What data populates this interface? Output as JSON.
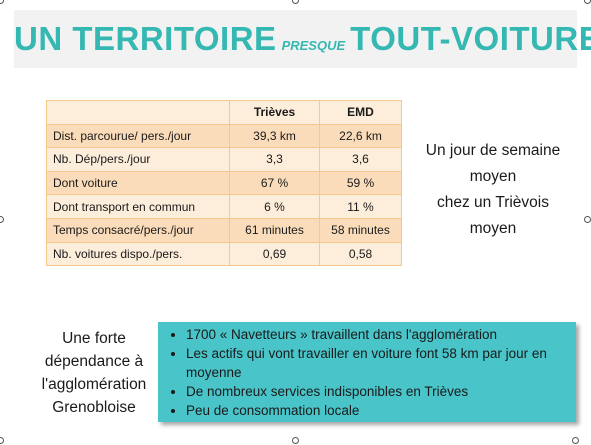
{
  "title": {
    "part1": "UN TERRITOIRE",
    "part2": "PRESQUE",
    "part3": "TOUT-VOITURE"
  },
  "table": {
    "headers": [
      "",
      "Trièves",
      "EMD"
    ],
    "rows": [
      [
        "Dist. parcourue/ pers./jour",
        "39,3 km",
        "22,6 km"
      ],
      [
        "Nb. Dép/pers./jour",
        "3,3",
        "3,6"
      ],
      [
        "Dont voiture",
        "67 %",
        "59 %"
      ],
      [
        "Dont transport en commun",
        "6 %",
        "11 %"
      ],
      [
        "Temps consacré/pers./jour",
        "61 minutes",
        "58 minutes"
      ],
      [
        "Nb. voitures dispo./pers.",
        "0,69",
        "0,58"
      ]
    ]
  },
  "side_caption": [
    "Un jour de semaine",
    "moyen",
    "chez un Trièvois",
    "moyen"
  ],
  "left_caption": [
    "Une forte",
    "dépendance à",
    "l'agglomération",
    "Grenobloise"
  ],
  "bullets": [
    "1700 « Navetteurs » travaillent dans l'agglomération",
    "Les actifs qui vont travailler en voiture font 58 km par jour en moyenne",
    "De nombreux services indisponibles en Trièves",
    "Peu de consommation locale"
  ],
  "colors": {
    "title": "#35b8b2",
    "table_row_dark": "#fbdcba",
    "table_row_light": "#fdeedb",
    "table_border": "#f3c98c",
    "box_fill": "#49c4c9"
  }
}
